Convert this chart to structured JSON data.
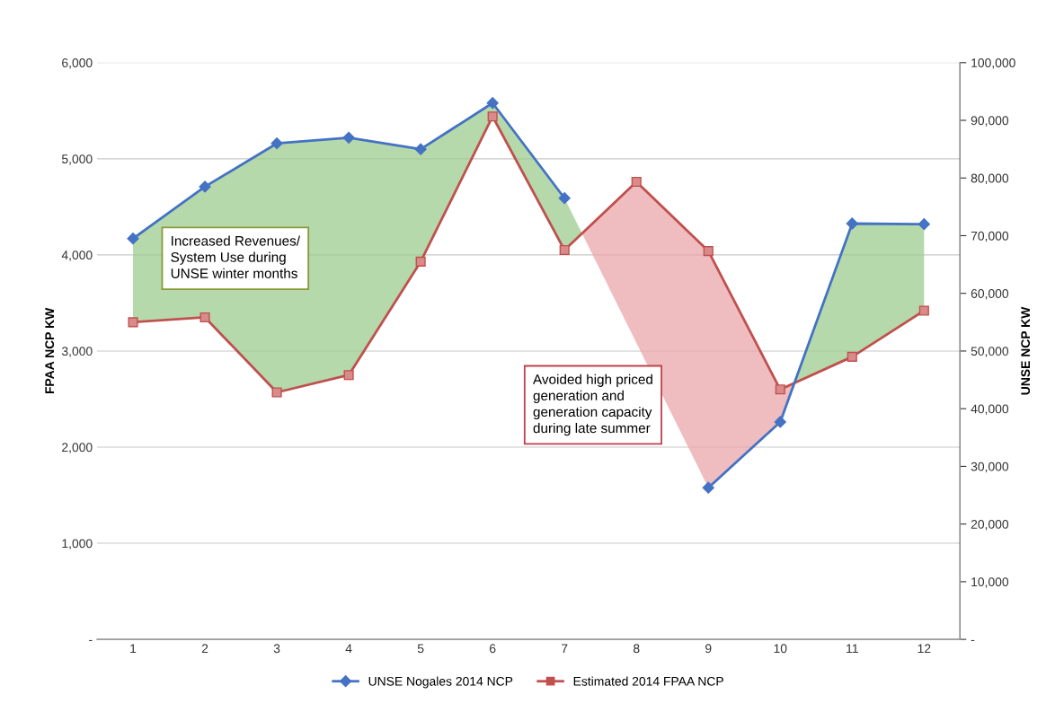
{
  "chart_data": {
    "type": "line",
    "categories": [
      "1",
      "2",
      "3",
      "4",
      "5",
      "6",
      "7",
      "8",
      "9",
      "10",
      "11",
      "12"
    ],
    "series": [
      {
        "name": "UNSE Nogales 2014 NCP",
        "color": "#4472c4",
        "axis": "y2",
        "marker": "diamond",
        "values": [
          69500,
          78500,
          86000,
          87000,
          85000,
          93000,
          76500,
          null,
          26300,
          37700,
          72100,
          72000
        ]
      },
      {
        "name": "Estimated 2014 FPAA NCP",
        "color": "#c0504d",
        "marker": "square",
        "values": [
          3300,
          3350,
          2570,
          2750,
          3930,
          5440,
          4050,
          4760,
          4040,
          2600,
          2940,
          3420
        ]
      }
    ],
    "ylabel": "FPAA NCP KW",
    "y2label": "UNSE NCP KW",
    "ylim": [
      0,
      6000
    ],
    "yticks": [
      {
        "value": 0,
        "label": "-"
      },
      {
        "value": 1000,
        "label": "1,000"
      },
      {
        "value": 2000,
        "label": "2,000"
      },
      {
        "value": 3000,
        "label": "3,000"
      },
      {
        "value": 4000,
        "label": "4,000"
      },
      {
        "value": 5000,
        "label": "5,000"
      },
      {
        "value": 6000,
        "label": "6,000"
      }
    ],
    "y2lim": [
      0,
      100000
    ],
    "y2ticks": [
      {
        "value": 0,
        "label": "-"
      },
      {
        "value": 10000,
        "label": "10,000"
      },
      {
        "value": 20000,
        "label": "20,000"
      },
      {
        "value": 30000,
        "label": "30,000"
      },
      {
        "value": 40000,
        "label": "40,000"
      },
      {
        "value": 50000,
        "label": "50,000"
      },
      {
        "value": 60000,
        "label": "60,000"
      },
      {
        "value": 70000,
        "label": "70,000"
      },
      {
        "value": 80000,
        "label": "80,000"
      },
      {
        "value": 90000,
        "label": "90,000"
      },
      {
        "value": 100000,
        "label": "100,000"
      }
    ],
    "annotations": [
      "Increased Revenues/\nSystem Use during\nUNSE winter months",
      "Avoided high priced\ngeneration and\ngeneration capacity\nduring late summer"
    ],
    "grid": "y",
    "legend": "bottom"
  }
}
